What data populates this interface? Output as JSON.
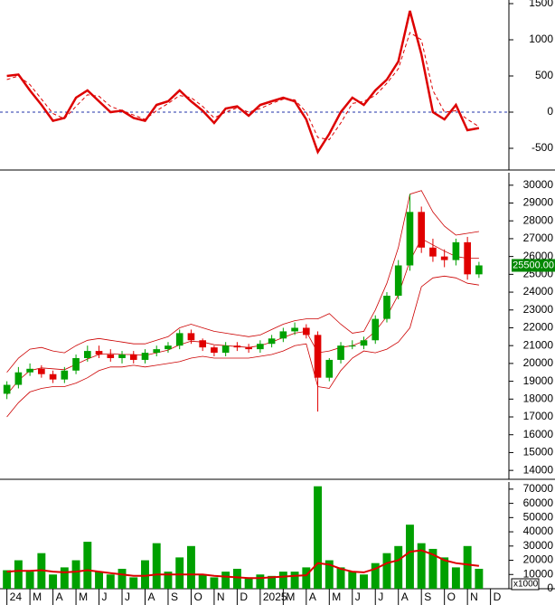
{
  "chart_data": [
    {
      "type": "line",
      "ylim": [
        -800,
        1550
      ],
      "yticks": [
        -500,
        0,
        500,
        1000,
        1500
      ],
      "zero_line": 0,
      "zero_line_color": "#2233aa",
      "series": [
        {
          "color": "#dd0000",
          "width": 2.5,
          "values": [
            500,
            520,
            300,
            100,
            -120,
            -80,
            200,
            300,
            150,
            0,
            20,
            -80,
            -120,
            100,
            150,
            300,
            150,
            20,
            -150,
            50,
            80,
            -50,
            100,
            150,
            200,
            150,
            -100,
            -550,
            -300,
            0,
            200,
            100,
            300,
            450,
            700,
            1400,
            800,
            0,
            -100,
            100,
            -250,
            -220
          ]
        },
        {
          "color": "#dd0000",
          "width": 1,
          "dash": true,
          "values": [
            450,
            500,
            380,
            180,
            -20,
            -90,
            80,
            240,
            220,
            80,
            20,
            -40,
            -100,
            20,
            120,
            230,
            200,
            80,
            -80,
            0,
            60,
            0,
            50,
            120,
            180,
            170,
            0,
            -350,
            -380,
            -150,
            120,
            150,
            230,
            400,
            600,
            1100,
            1000,
            300,
            0,
            20,
            -100,
            -200
          ]
        }
      ]
    },
    {
      "type": "candlestick",
      "ylim": [
        13500,
        30700
      ],
      "yticks": [
        14000,
        15000,
        16000,
        17000,
        18000,
        19000,
        20000,
        21000,
        22000,
        23000,
        24000,
        25000,
        26000,
        27000,
        28000,
        29000,
        30000
      ],
      "up_color": "#00a000",
      "down_color": "#e00000",
      "open": [
        18300,
        18800,
        19500,
        19700,
        19400,
        19100,
        19600,
        20300,
        20700,
        20500,
        20300,
        20500,
        20200,
        20600,
        20800,
        21000,
        21700,
        21300,
        20900,
        20600,
        21000,
        20900,
        20800,
        21100,
        21400,
        21800,
        22000,
        21600,
        19200,
        20200,
        21000,
        21000,
        21300,
        22500,
        23800,
        25500,
        28500,
        26500,
        26000,
        25800,
        26800,
        25000
      ],
      "high": [
        19000,
        19800,
        20000,
        19900,
        19600,
        19800,
        20500,
        21000,
        21000,
        20800,
        20700,
        20700,
        20800,
        21000,
        21200,
        21900,
        21900,
        21400,
        21000,
        21200,
        21200,
        21100,
        21300,
        21600,
        22000,
        22300,
        22200,
        21800,
        20300,
        21200,
        21300,
        21500,
        22700,
        24000,
        25800,
        29500,
        28800,
        27000,
        26400,
        27000,
        27100,
        25700
      ],
      "low": [
        18000,
        18600,
        19300,
        19200,
        18900,
        18900,
        19400,
        20100,
        20300,
        20100,
        20000,
        20000,
        20000,
        20400,
        20600,
        20800,
        21100,
        20700,
        20400,
        20400,
        20700,
        20600,
        20600,
        20900,
        21200,
        21600,
        21400,
        17300,
        19000,
        20000,
        20800,
        20800,
        21100,
        22300,
        23600,
        25200,
        26200,
        25700,
        25400,
        25500,
        24700,
        24800
      ],
      "close": [
        18800,
        19500,
        19700,
        19400,
        19100,
        19600,
        20300,
        20700,
        20500,
        20300,
        20500,
        20200,
        20600,
        20800,
        21000,
        21700,
        21300,
        20900,
        20600,
        21000,
        20900,
        20800,
        21100,
        21400,
        21800,
        22000,
        21600,
        19200,
        20200,
        21000,
        21000,
        21300,
        22500,
        23800,
        25500,
        28500,
        26500,
        26000,
        25800,
        26800,
        25000,
        25500
      ],
      "bands": [
        {
          "color": "#cc0000",
          "values": [
            19500,
            20300,
            20800,
            20900,
            20700,
            20600,
            21000,
            21300,
            21400,
            21300,
            21200,
            21100,
            21100,
            21300,
            21500,
            22000,
            22200,
            22000,
            21800,
            21700,
            21600,
            21500,
            21600,
            21900,
            22200,
            22400,
            22500,
            22500,
            22800,
            22200,
            21700,
            21800,
            23000,
            24500,
            26500,
            29500,
            29700,
            28500,
            27700,
            27200,
            27300,
            27400
          ]
        },
        {
          "color": "#cc0000",
          "values": [
            18250,
            19050,
            19600,
            19750,
            19700,
            19650,
            19950,
            20250,
            20500,
            20550,
            20500,
            20500,
            20450,
            20600,
            20750,
            21050,
            21250,
            21200,
            21050,
            21000,
            20950,
            20900,
            21000,
            21200,
            21450,
            21700,
            21800,
            20600,
            20700,
            20900,
            21000,
            21250,
            21800,
            22650,
            23850,
            25750,
            27000,
            26650,
            26300,
            26000,
            25900,
            25900
          ]
        },
        {
          "color": "#cc0000",
          "values": [
            17000,
            17800,
            18400,
            18600,
            18700,
            18700,
            18900,
            19200,
            19600,
            19800,
            19800,
            19900,
            19800,
            19900,
            20000,
            20100,
            20300,
            20400,
            20300,
            20300,
            20300,
            20300,
            20400,
            20500,
            20700,
            21000,
            21100,
            18700,
            18600,
            19600,
            20300,
            20700,
            20600,
            20800,
            21200,
            22000,
            24300,
            24800,
            24900,
            24800,
            24500,
            24400
          ]
        }
      ],
      "last_price": {
        "value": 25500,
        "label": "25500.00"
      },
      "last_price_color": "#008800"
    },
    {
      "type": "bar",
      "color": "#00a000",
      "ylim": [
        0,
        75000
      ],
      "yticks": [
        0,
        10000,
        20000,
        30000,
        40000,
        50000,
        60000,
        70000
      ],
      "unit_label": "x1000",
      "xlim": [
        -0.3,
        21.8
      ],
      "x": [
        0,
        0.5,
        1,
        1.5,
        2,
        2.5,
        3,
        3.5,
        4,
        4.5,
        5,
        5.5,
        6,
        6.5,
        7,
        7.5,
        8,
        8.5,
        9,
        9.5,
        10,
        10.5,
        11,
        11.5,
        12,
        12.5,
        13,
        13.5,
        14,
        14.5,
        15,
        15.5,
        16,
        16.5,
        17,
        17.5,
        18,
        18.5,
        19,
        19.5,
        20,
        20.5
      ],
      "xticks": [
        {
          "value": 0,
          "label": "24"
        },
        {
          "value": 1,
          "label": "M"
        },
        {
          "value": 2,
          "label": "A"
        },
        {
          "value": 3,
          "label": "M"
        },
        {
          "value": 4,
          "label": "J"
        },
        {
          "value": 5,
          "label": "J"
        },
        {
          "value": 6,
          "label": "A"
        },
        {
          "value": 7,
          "label": "S"
        },
        {
          "value": 8,
          "label": "O"
        },
        {
          "value": 9,
          "label": "N"
        },
        {
          "value": 10,
          "label": "D"
        },
        {
          "value": 11,
          "label": "2025"
        },
        {
          "value": 12,
          "label": "M"
        },
        {
          "value": 13,
          "label": "A"
        },
        {
          "value": 14,
          "label": "M"
        },
        {
          "value": 15,
          "label": "J"
        },
        {
          "value": 16,
          "label": "J"
        },
        {
          "value": 17,
          "label": "A"
        },
        {
          "value": 18,
          "label": "S"
        },
        {
          "value": 19,
          "label": "O"
        },
        {
          "value": 20,
          "label": "N"
        },
        {
          "value": 21,
          "label": "D"
        }
      ],
      "values": [
        13000,
        20000,
        12000,
        25000,
        10000,
        15000,
        20000,
        33000,
        12000,
        10000,
        14000,
        8000,
        20000,
        32000,
        12000,
        22000,
        30000,
        10000,
        8000,
        12000,
        14000,
        8000,
        10000,
        9000,
        12000,
        12000,
        15000,
        72000,
        20000,
        15000,
        12000,
        10000,
        18000,
        25000,
        30000,
        45000,
        32000,
        28000,
        22000,
        15000,
        30000,
        14000
      ],
      "series": [
        {
          "color": "#dd0000",
          "values": [
            12000,
            12500,
            12500,
            13000,
            12000,
            11500,
            12000,
            13000,
            12000,
            11000,
            10000,
            9000,
            9000,
            10000,
            10000,
            10000,
            10000,
            10000,
            9000,
            8500,
            8000,
            7500,
            7500,
            8000,
            8500,
            9000,
            9500,
            18000,
            17000,
            14000,
            12000,
            11500,
            14000,
            18000,
            20000,
            26000,
            27000,
            24000,
            20000,
            18000,
            17000,
            16000
          ]
        }
      ]
    }
  ]
}
